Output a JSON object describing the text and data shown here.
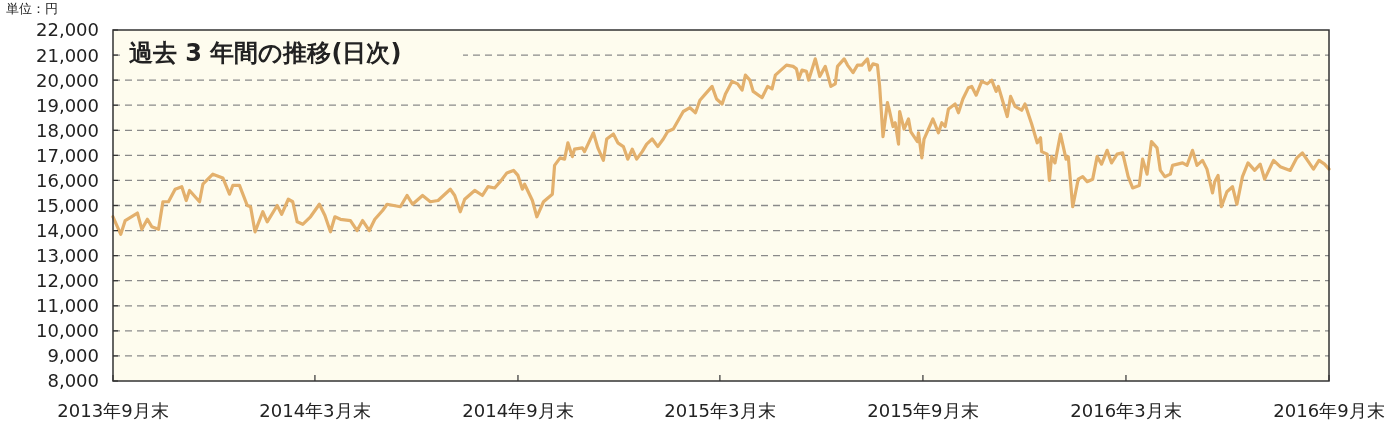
{
  "chart_data": {
    "type": "line",
    "title": "過去 3 年間の推移(日次)",
    "ylabel": "単位：円",
    "grid": "y",
    "marker": "none",
    "line_style": "solid",
    "xlim": [
      "2013-09-30",
      "2016-09-30"
    ],
    "xticks": [
      {
        "value": "2013-09-30",
        "label": "2013年9月末"
      },
      {
        "value": "2014-03-31",
        "label": "2014年3月末"
      },
      {
        "value": "2014-09-30",
        "label": "2014年9月末"
      },
      {
        "value": "2015-03-31",
        "label": "2015年3月末"
      },
      {
        "value": "2015-09-30",
        "label": "2015年9月末"
      },
      {
        "value": "2016-03-31",
        "label": "2016年3月末"
      },
      {
        "value": "2016-09-30",
        "label": "2016年9月末"
      }
    ],
    "ylim": [
      8000,
      22000
    ],
    "yticks": [
      {
        "value": 8000,
        "label": "8,000"
      },
      {
        "value": 9000,
        "label": "9,000"
      },
      {
        "value": 10000,
        "label": "10,000"
      },
      {
        "value": 11000,
        "label": "11,000"
      },
      {
        "value": 12000,
        "label": "12,000"
      },
      {
        "value": 13000,
        "label": "13,000"
      },
      {
        "value": 14000,
        "label": "14,000"
      },
      {
        "value": 15000,
        "label": "15,000"
      },
      {
        "value": 16000,
        "label": "16,000"
      },
      {
        "value": 17000,
        "label": "17,000"
      },
      {
        "value": 18000,
        "label": "18,000"
      },
      {
        "value": 19000,
        "label": "19,000"
      },
      {
        "value": 20000,
        "label": "20,000"
      },
      {
        "value": 21000,
        "label": "21,000"
      },
      {
        "value": 22000,
        "label": "22,000"
      }
    ],
    "series": [
      {
        "color": "#e3b06c",
        "x": [
          "2013-09-30",
          "2013-10-07",
          "2013-10-11",
          "2013-10-22",
          "2013-10-26",
          "2013-10-31",
          "2013-11-04",
          "2013-11-10",
          "2013-11-14",
          "2013-11-19",
          "2013-11-25",
          "2013-12-01",
          "2013-12-05",
          "2013-12-08",
          "2013-12-17",
          "2013-12-20",
          "2013-12-29",
          "2014-01-07",
          "2014-01-13",
          "2014-01-16",
          "2014-01-22",
          "2014-01-29",
          "2014-02-01",
          "2014-02-05",
          "2014-02-12",
          "2014-02-16",
          "2014-02-25",
          "2014-03-01",
          "2014-03-07",
          "2014-03-11",
          "2014-03-15",
          "2014-03-20",
          "2014-03-27",
          "2014-04-04",
          "2014-04-09",
          "2014-04-14",
          "2014-04-18",
          "2014-04-23",
          "2014-05-02",
          "2014-05-08",
          "2014-05-13",
          "2014-05-19",
          "2014-05-24",
          "2014-05-31",
          "2014-06-04",
          "2014-06-16",
          "2014-06-22",
          "2014-06-27",
          "2014-07-06",
          "2014-07-13",
          "2014-07-20",
          "2014-07-31",
          "2014-08-04",
          "2014-08-09",
          "2014-08-13",
          "2014-08-22",
          "2014-08-29",
          "2014-09-03",
          "2014-09-09",
          "2014-09-14",
          "2014-09-20",
          "2014-09-26",
          "2014-09-30",
          "2014-10-04",
          "2014-10-06",
          "2014-10-13",
          "2014-10-17",
          "2014-10-23",
          "2014-10-31",
          "2014-11-02",
          "2014-11-07",
          "2014-11-11",
          "2014-11-14",
          "2014-11-18",
          "2014-11-20",
          "2014-11-27",
          "2014-11-29",
          "2014-12-07",
          "2014-12-11",
          "2014-12-16",
          "2014-12-19",
          "2014-12-25",
          "2014-12-29",
          "2015-01-03",
          "2015-01-07",
          "2015-01-11",
          "2015-01-15",
          "2015-01-20",
          "2015-01-24",
          "2015-01-29",
          "2015-02-03",
          "2015-02-08",
          "2015-02-12",
          "2015-02-17",
          "2015-02-26",
          "2015-03-04",
          "2015-03-09",
          "2015-03-13",
          "2015-03-18",
          "2015-03-24",
          "2015-03-28",
          "2015-04-02",
          "2015-04-05",
          "2015-04-11",
          "2015-04-16",
          "2015-04-20",
          "2015-04-23",
          "2015-04-27",
          "2015-04-30",
          "2015-05-08",
          "2015-05-13",
          "2015-05-17",
          "2015-05-20",
          "2015-05-30",
          "2015-06-05",
          "2015-06-08",
          "2015-06-10",
          "2015-06-13",
          "2015-06-17",
          "2015-06-19",
          "2015-06-25",
          "2015-06-29",
          "2015-07-04",
          "2015-07-09",
          "2015-07-13",
          "2015-07-15",
          "2015-07-21",
          "2015-07-24",
          "2015-07-29",
          "2015-08-02",
          "2015-08-06",
          "2015-08-11",
          "2015-08-13",
          "2015-08-16",
          "2015-08-20",
          "2015-08-22",
          "2015-08-25",
          "2015-08-29",
          "2015-08-31",
          "2015-09-03",
          "2015-09-05",
          "2015-09-08",
          "2015-09-09",
          "2015-09-13",
          "2015-09-17",
          "2015-09-19",
          "2015-09-25",
          "2015-09-26",
          "2015-09-29",
          "2015-10-01",
          "2015-10-09",
          "2015-10-14",
          "2015-10-17",
          "2015-10-20",
          "2015-10-23",
          "2015-10-29",
          "2015-11-01",
          "2015-11-05",
          "2015-11-10",
          "2015-11-13",
          "2015-11-17",
          "2015-11-22",
          "2015-11-27",
          "2015-12-01",
          "2015-12-05",
          "2015-12-07",
          "2015-12-10",
          "2015-12-15",
          "2015-12-18",
          "2015-12-22",
          "2015-12-28",
          "2015-12-31",
          "2016-01-06",
          "2016-01-11",
          "2016-01-14",
          "2016-01-15",
          "2016-01-20",
          "2016-01-22",
          "2016-01-24",
          "2016-01-27",
          "2016-02-01",
          "2016-02-06",
          "2016-02-08",
          "2016-02-12",
          "2016-02-17",
          "2016-02-21",
          "2016-02-25",
          "2016-03-01",
          "2016-03-05",
          "2016-03-09",
          "2016-03-14",
          "2016-03-18",
          "2016-03-23",
          "2016-03-28",
          "2016-04-02",
          "2016-04-06",
          "2016-04-12",
          "2016-04-15",
          "2016-04-19",
          "2016-04-23",
          "2016-04-28",
          "2016-05-01",
          "2016-05-05",
          "2016-05-10",
          "2016-05-12",
          "2016-05-21",
          "2016-05-25",
          "2016-05-30",
          "2016-06-03",
          "2016-06-08",
          "2016-06-12",
          "2016-06-17",
          "2016-06-19",
          "2016-06-22",
          "2016-06-25",
          "2016-06-30",
          "2016-07-05",
          "2016-07-09",
          "2016-07-14",
          "2016-07-19",
          "2016-07-25",
          "2016-07-30",
          "2016-08-03",
          "2016-08-11",
          "2016-08-17",
          "2016-08-26",
          "2016-09-01",
          "2016-09-06",
          "2016-09-16",
          "2016-09-21",
          "2016-09-26",
          "2016-09-30"
        ],
        "values": [
          14550,
          13850,
          14400,
          14700,
          14050,
          14450,
          14150,
          14050,
          15150,
          15150,
          15650,
          15750,
          15200,
          15600,
          15150,
          15850,
          16250,
          16100,
          15450,
          15800,
          15800,
          15000,
          14950,
          13950,
          14750,
          14350,
          15000,
          14650,
          15250,
          15150,
          14350,
          14250,
          14550,
          15050,
          14600,
          13950,
          14550,
          14450,
          14400,
          14000,
          14400,
          14000,
          14450,
          14800,
          15050,
          14950,
          15400,
          15050,
          15400,
          15150,
          15200,
          15650,
          15400,
          14750,
          15250,
          15600,
          15400,
          15750,
          15700,
          15950,
          16300,
          16400,
          16200,
          15650,
          15850,
          15200,
          14550,
          15150,
          15450,
          16600,
          16900,
          16850,
          17500,
          16950,
          17250,
          17300,
          17150,
          17900,
          17300,
          16800,
          17650,
          17850,
          17500,
          17350,
          16850,
          17250,
          16850,
          17150,
          17450,
          17650,
          17350,
          17650,
          17950,
          18050,
          18750,
          18900,
          18700,
          19200,
          19450,
          19750,
          19250,
          19050,
          19450,
          19950,
          19850,
          19600,
          20200,
          20000,
          19550,
          19300,
          19750,
          19650,
          20200,
          20600,
          20550,
          20450,
          20050,
          20400,
          20350,
          20000,
          20850,
          20150,
          20550,
          19750,
          19850,
          20550,
          20850,
          20600,
          20300,
          20600,
          20600,
          20850,
          20400,
          20650,
          20600,
          19750,
          17750,
          19100,
          18750,
          18150,
          18300,
          17450,
          18750,
          18050,
          18450,
          17950,
          17550,
          17900,
          16900,
          17650,
          18450,
          17900,
          18300,
          18150,
          18850,
          19050,
          18700,
          19250,
          19700,
          19750,
          19400,
          19950,
          19850,
          20000,
          19550,
          19750,
          19300,
          18550,
          19350,
          18950,
          18800,
          19050,
          18250,
          17500,
          17700,
          17150,
          17050,
          16000,
          16950,
          16700,
          17850,
          16850,
          16950,
          14950,
          16050,
          16150,
          15950,
          16050,
          16950,
          16650,
          17200,
          16700,
          17050,
          17100,
          16150,
          15700,
          15800,
          16850,
          16250,
          17550,
          17300,
          16400,
          16150,
          16250,
          16600,
          16700,
          16600,
          17200,
          16600,
          16800,
          16450,
          15500,
          15950,
          16200,
          14950,
          15550,
          15750,
          15050,
          16150,
          16700,
          16400,
          16650,
          16050,
          16800,
          16550,
          16400,
          16900,
          17100,
          16450,
          16800,
          16650,
          16450
        ]
      }
    ]
  }
}
